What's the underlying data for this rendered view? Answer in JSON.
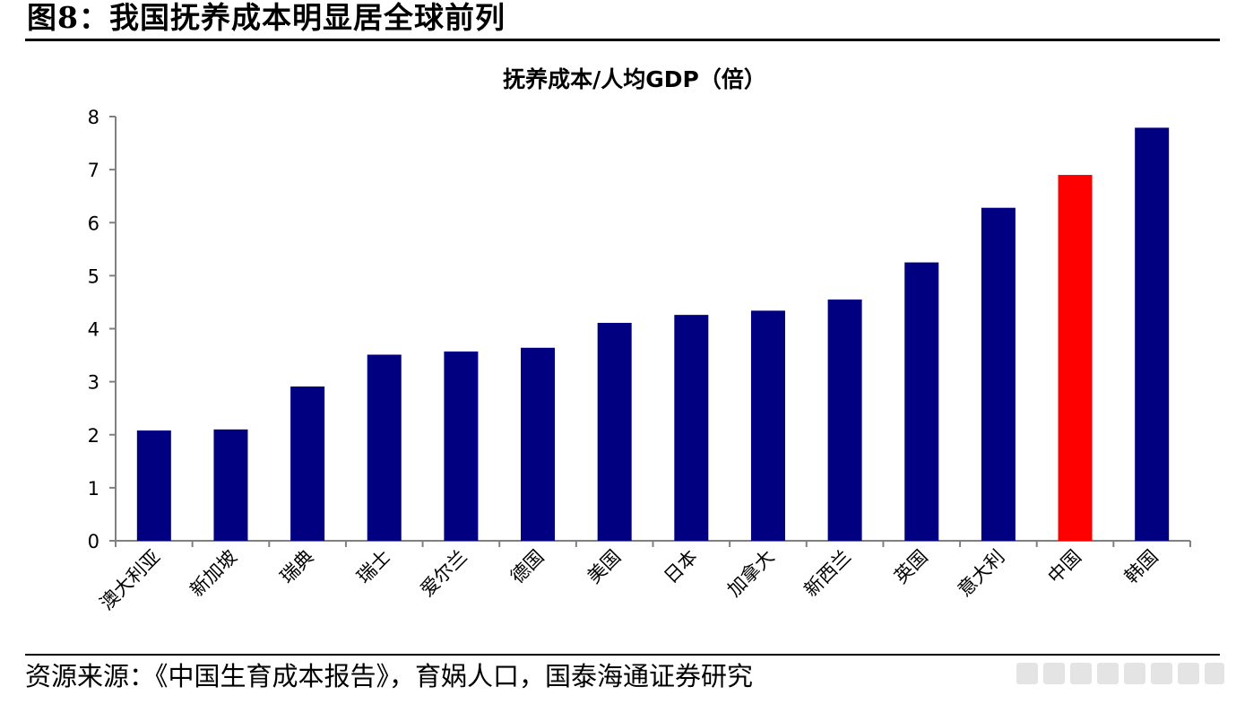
{
  "figure": {
    "title": "图8：我国抚养成本明显居全球前列",
    "source": "资源来源：《中国生育成本报告》，育娲人口，国泰海通证券研究"
  },
  "colors": {
    "bar": "#000080",
    "highlight": "#FF0000",
    "axis": "#808080"
  },
  "chart_data": {
    "type": "bar",
    "title": "抚养成本/人均GDP（倍）",
    "xlabel": "",
    "ylabel": "",
    "categories": [
      "澳大利亚",
      "新加坡",
      "瑞典",
      "瑞士",
      "爱尔兰",
      "德国",
      "美国",
      "日本",
      "加拿大",
      "新西兰",
      "英国",
      "意大利",
      "中国",
      "韩国"
    ],
    "values": [
      2.08,
      2.1,
      2.91,
      3.51,
      3.57,
      3.64,
      4.11,
      4.26,
      4.34,
      4.55,
      5.25,
      6.28,
      6.9,
      7.79
    ],
    "highlight_category": "中国",
    "ylim": [
      0,
      8
    ],
    "yticks": [
      0,
      1,
      2,
      3,
      4,
      5,
      6,
      7,
      8
    ],
    "grid": false,
    "legend": "none"
  }
}
